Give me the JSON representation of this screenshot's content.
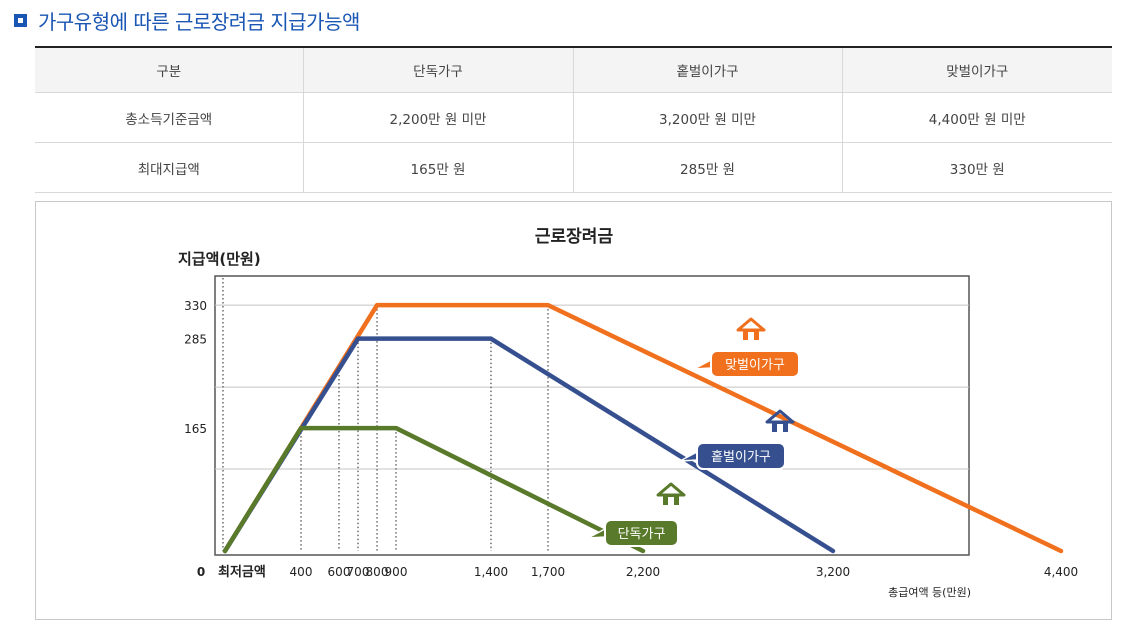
{
  "heading": {
    "title": "가구유형에 따른 근로장려금 지급가능액"
  },
  "table": {
    "headers": [
      "구분",
      "단독가구",
      "홑벌이가구",
      "맞벌이가구"
    ],
    "rows": [
      [
        "총소득기준금액",
        "2,200만 원 미만",
        "3,200만 원 미만",
        "4,400만 원 미만"
      ],
      [
        "최대지급액",
        "165만 원",
        "285만 원",
        "330만 원"
      ]
    ]
  },
  "chart_data": {
    "type": "line",
    "title": "근로장려금",
    "ylabel": "지급액(만원)",
    "xlabel": "총급여액 등(만원)",
    "x_origin_label": "0",
    "x_axis_note": "최저금액",
    "xlim": [
      0,
      4400
    ],
    "ylim": [
      0,
      330
    ],
    "y_ticks": [
      165,
      285,
      330
    ],
    "x_ticks": [
      400,
      600,
      700,
      800,
      900,
      1400,
      1700,
      2200,
      3200,
      4400
    ],
    "x_tick_labels": [
      "400",
      "600",
      "700",
      "800",
      "900",
      "1,400",
      "1,700",
      "2,200",
      "3,200",
      "4,400"
    ],
    "grid": true,
    "series": [
      {
        "name": "맞벌이가구",
        "color": "#f0701d",
        "points": [
          [
            0,
            0
          ],
          [
            800,
            330
          ],
          [
            1700,
            330
          ],
          [
            4400,
            0
          ]
        ]
      },
      {
        "name": "홑벌이가구",
        "color": "#354f8f",
        "points": [
          [
            0,
            0
          ],
          [
            700,
            285
          ],
          [
            1400,
            285
          ],
          [
            3200,
            0
          ]
        ]
      },
      {
        "name": "단독가구",
        "color": "#5a7a2b",
        "points": [
          [
            0,
            0
          ],
          [
            400,
            165
          ],
          [
            900,
            165
          ],
          [
            2200,
            0
          ]
        ]
      }
    ]
  }
}
